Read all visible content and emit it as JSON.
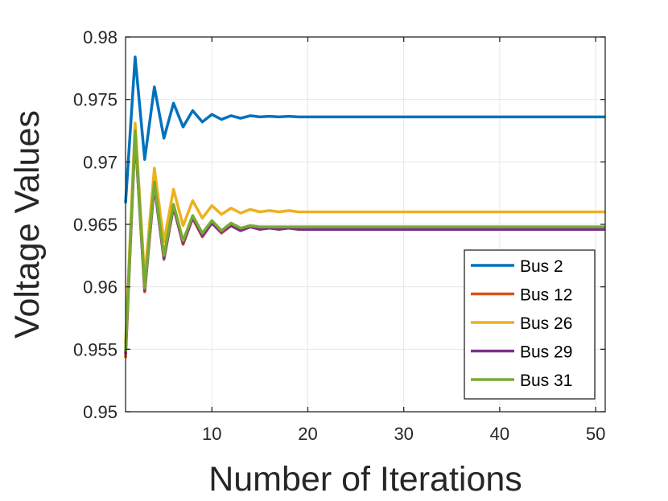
{
  "chart_data": {
    "type": "line",
    "title": "",
    "xlabel": "Number of Iterations",
    "ylabel": "Voltage Values",
    "xlim": [
      1,
      51
    ],
    "ylim": [
      0.95,
      0.98
    ],
    "xticks": [
      10,
      20,
      30,
      40,
      50
    ],
    "xtick_labels": [
      "10",
      "20",
      "30",
      "40",
      "50"
    ],
    "yticks": [
      0.95,
      0.955,
      0.96,
      0.965,
      0.97,
      0.975,
      0.98
    ],
    "ytick_labels": [
      "0.95",
      "0.955",
      "0.96",
      "0.965",
      "0.97",
      "0.975",
      "0.98"
    ],
    "grid": true,
    "legend_position": "bottom-right",
    "x": [
      1,
      2,
      3,
      4,
      5,
      6,
      7,
      8,
      9,
      10,
      11,
      12,
      13,
      14,
      15,
      16,
      17,
      18,
      19,
      20,
      51
    ],
    "series": [
      {
        "name": "Bus 2",
        "color": "#0072BD",
        "values": [
          0.9667,
          0.9784,
          0.9702,
          0.976,
          0.9719,
          0.9747,
          0.9728,
          0.9741,
          0.9732,
          0.9738,
          0.9734,
          0.9737,
          0.9735,
          0.9737,
          0.9736,
          0.97365,
          0.9736,
          0.97365,
          0.9736,
          0.9736,
          0.9736
        ]
      },
      {
        "name": "Bus 12",
        "color": "#D95319",
        "values": [
          0.9543,
          0.9723,
          0.9596,
          0.9682,
          0.9622,
          0.9664,
          0.9634,
          0.9655,
          0.964,
          0.9651,
          0.9643,
          0.9649,
          0.9645,
          0.9648,
          0.9646,
          0.9647,
          0.9646,
          0.9647,
          0.9646,
          0.9646,
          0.9646
        ]
      },
      {
        "name": "Bus 26",
        "color": "#EDB120",
        "values": [
          0.9555,
          0.9731,
          0.9606,
          0.9695,
          0.9636,
          0.9678,
          0.9649,
          0.9669,
          0.9655,
          0.9665,
          0.9658,
          0.9663,
          0.9659,
          0.9662,
          0.966,
          0.9661,
          0.966,
          0.9661,
          0.966,
          0.966,
          0.966
        ]
      },
      {
        "name": "Bus 29",
        "color": "#7E2F8E",
        "values": [
          0.9546,
          0.9722,
          0.9597,
          0.9681,
          0.9623,
          0.9664,
          0.9635,
          0.9655,
          0.9641,
          0.9651,
          0.9644,
          0.9649,
          0.9645,
          0.9648,
          0.9646,
          0.9647,
          0.9646,
          0.9647,
          0.9646,
          0.9646,
          0.9646
        ]
      },
      {
        "name": "Bus 31",
        "color": "#77AC30",
        "values": [
          0.9548,
          0.9725,
          0.9599,
          0.9684,
          0.9625,
          0.9666,
          0.9637,
          0.9657,
          0.9643,
          0.9653,
          0.9645,
          0.9651,
          0.9647,
          0.9649,
          0.9648,
          0.9648,
          0.9648,
          0.9648,
          0.9648,
          0.9648,
          0.9648
        ]
      }
    ]
  }
}
